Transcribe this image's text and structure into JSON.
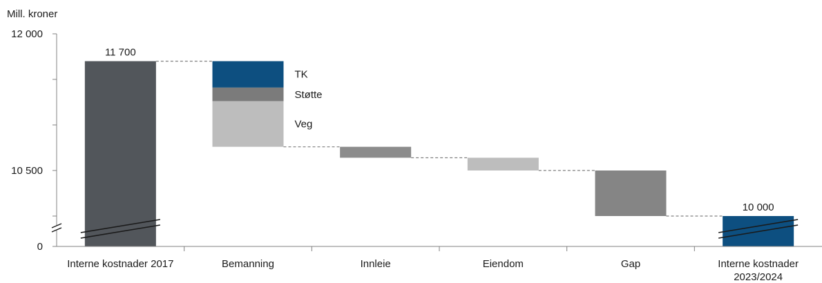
{
  "chart_data": {
    "type": "waterfall",
    "ylabel": "Mill. kroner",
    "y_ticks": [
      {
        "label": "12 000",
        "value": 12000
      },
      {
        "label": "10 500",
        "value": 10500
      },
      {
        "label": "0",
        "value": 0
      }
    ],
    "y_axis_break": true,
    "categories": [
      "Interne kostnader 2017",
      "Bemanning",
      "Innleie",
      "Eiendom",
      "Gap",
      "Interne kostnader 2023/2024"
    ],
    "bars": [
      {
        "category": "Interne kostnader 2017",
        "kind": "total",
        "base": 0,
        "top": 11700,
        "label": "11 700",
        "color": "#52565b"
      },
      {
        "category": "Bemanning",
        "kind": "decrease",
        "segments": [
          {
            "name": "TK",
            "top": 11700,
            "bottom": 11410,
            "color": "#0d4f80"
          },
          {
            "name": "Støtte",
            "top": 11410,
            "bottom": 11260,
            "color": "#7b7b7b"
          },
          {
            "name": "Veg",
            "top": 11260,
            "bottom": 10760,
            "color": "#bdbdbd"
          }
        ]
      },
      {
        "category": "Innleie",
        "kind": "decrease",
        "top": 10760,
        "bottom": 10640,
        "color": "#8c8c8c"
      },
      {
        "category": "Eiendom",
        "kind": "decrease",
        "top": 10640,
        "bottom": 10500,
        "color": "#bdbdbd"
      },
      {
        "category": "Gap",
        "kind": "decrease",
        "top": 10500,
        "bottom": 10000,
        "color": "#858585"
      },
      {
        "category": "Interne kostnader 2023/2024",
        "kind": "total",
        "base": 0,
        "top": 10000,
        "label": "10 000",
        "color": "#0d4f80"
      }
    ],
    "connector_color": "#7f7f7f",
    "axis_color": "#808080"
  }
}
